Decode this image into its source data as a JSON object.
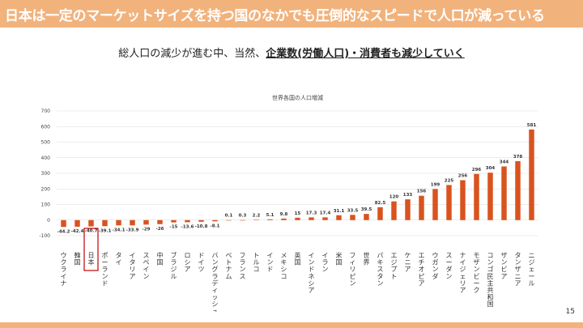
{
  "header": {
    "title_normal": "日本は一定のマーケットサイズを持つ国のなかでも",
    "title_bold": "圧倒的なスピードで人口が減っている"
  },
  "subtitle": {
    "prefix": "総人口の減少が進む中、当然、",
    "emphasis": "企業数(労働人口)・消費者も減少していく"
  },
  "page_number": "15",
  "colors": {
    "header": "#f2b27c",
    "bar": "#d9531e",
    "highlight": "#c00000"
  },
  "highlight_category": "日本",
  "chart_data": {
    "type": "bar",
    "title": "世界各国の人口増減",
    "xlabel": "",
    "ylabel": "",
    "ylim": [
      -100,
      700
    ],
    "yticks": [
      -100,
      0,
      100,
      200,
      300,
      400,
      500,
      600,
      700
    ],
    "grid": true,
    "categories": [
      "ウクライナ",
      "韓国",
      "日本",
      "ポーランド",
      "タイ",
      "イタリア",
      "スペイン",
      "中国",
      "ブラジル",
      "ロシア",
      "ドイツ",
      "バングラディッシュ",
      "ベトナム",
      "フランス",
      "トルコ",
      "インド",
      "メキシコ",
      "英国",
      "インドネシア",
      "イラン",
      "米国",
      "フィリピン",
      "世界",
      "パキスタン",
      "エジプト",
      "ケニア",
      "エチオピア",
      "ウガンダ",
      "スーダン",
      "ナイジェリア",
      "モザンビーク",
      "コンゴ民主共和国",
      "ザンビア",
      "タンザニア",
      "ニジェール"
    ],
    "values": [
      -44.2,
      -42.4,
      -40.7,
      -39.1,
      -34.1,
      -33.9,
      -29,
      -26,
      -15,
      -13.6,
      -10.8,
      -8.1,
      0.1,
      0.3,
      2.2,
      5.1,
      9.8,
      15,
      17.3,
      17.4,
      31.1,
      33.5,
      39.5,
      82.5,
      120,
      133,
      156,
      199,
      225,
      256,
      296,
      304,
      344,
      378,
      581
    ],
    "labels": [
      "-44.2",
      "-42.4",
      "-40.7",
      "-39.1",
      "-34.1",
      "-33.9",
      "-29",
      "-26",
      "-15",
      "-13.6",
      "-10.8",
      "-8.1",
      "0.1",
      "0.3",
      "2.2",
      "5.1",
      "9.8",
      "15",
      "17.3",
      "17.4",
      "31.1",
      "33.5",
      "39.5",
      "82.5",
      "120",
      "133",
      "156",
      "199",
      "225",
      "256",
      "296",
      "304",
      "344",
      "378",
      "581"
    ]
  }
}
